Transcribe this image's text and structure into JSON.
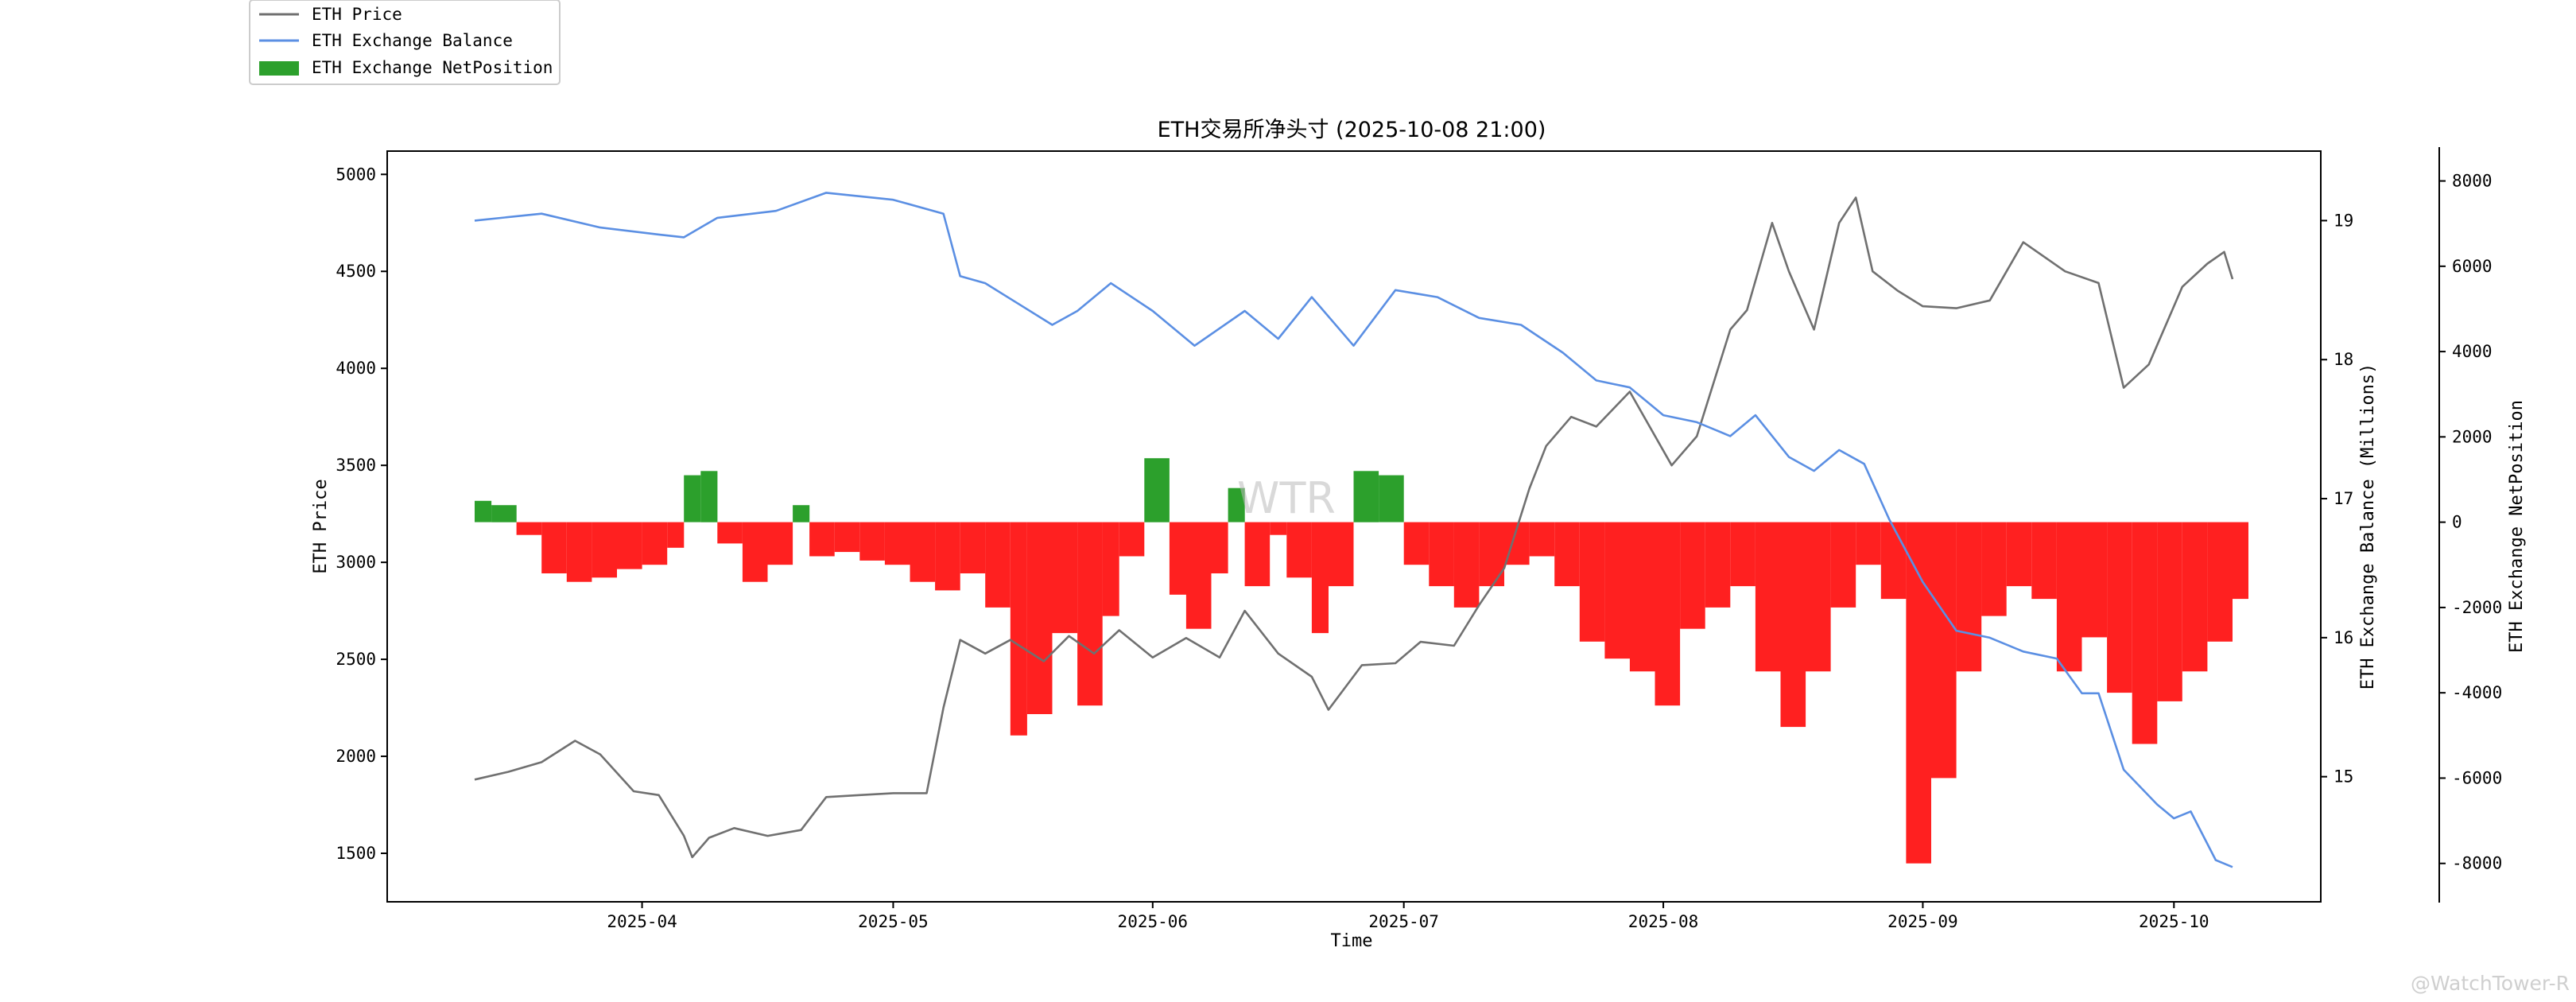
{
  "chart_data": {
    "type": "line",
    "title": "ETH交易所净头寸 (2025-10-08 21:00)",
    "xlabel": "Time",
    "x_ticks": [
      "2025-04",
      "2025-05",
      "2025-06",
      "2025-07",
      "2025-08",
      "2025-09",
      "2025-10"
    ],
    "x_range": [
      "2025-03-12",
      "2025-10-08"
    ],
    "watermark": "WTR",
    "corner_watermark": "@WatchTower-R",
    "legend": {
      "placement": "top-left, outside axes",
      "entries": [
        "ETH Price",
        "ETH Exchange Balance",
        "ETH Exchange NetPosition"
      ]
    },
    "colors": {
      "price": "#707070",
      "balance": "#5b8fe3",
      "net_positive": "#2ca02c",
      "net_negative": "#ff2020"
    },
    "axes": {
      "left": {
        "label": "ETH Price",
        "ylim": [
          1250,
          5120
        ],
        "ticks": [
          1500,
          2000,
          2500,
          3000,
          3500,
          4000,
          4500,
          5000
        ]
      },
      "right1": {
        "label": "ETH Exchange Balance (Millions)",
        "ylim": [
          14.1,
          19.5
        ],
        "ticks": [
          15,
          16,
          17,
          18,
          19
        ]
      },
      "right2": {
        "label": "ETH Exchange NetPosition",
        "ylim": [
          -8900,
          8700
        ],
        "ticks": [
          -8000,
          -6000,
          -4000,
          -2000,
          0,
          2000,
          4000,
          6000,
          8000
        ]
      }
    },
    "series": [
      {
        "name": "ETH Price",
        "type": "line",
        "axis": "left",
        "x": [
          "2025-03-12",
          "2025-03-16",
          "2025-03-20",
          "2025-03-24",
          "2025-03-27",
          "2025-03-31",
          "2025-04-03",
          "2025-04-06",
          "2025-04-07",
          "2025-04-09",
          "2025-04-12",
          "2025-04-16",
          "2025-04-20",
          "2025-04-23",
          "2025-04-27",
          "2025-05-01",
          "2025-05-05",
          "2025-05-07",
          "2025-05-09",
          "2025-05-12",
          "2025-05-15",
          "2025-05-19",
          "2025-05-22",
          "2025-05-25",
          "2025-05-28",
          "2025-06-01",
          "2025-06-05",
          "2025-06-09",
          "2025-06-12",
          "2025-06-16",
          "2025-06-20",
          "2025-06-22",
          "2025-06-26",
          "2025-06-30",
          "2025-07-03",
          "2025-07-07",
          "2025-07-10",
          "2025-07-13",
          "2025-07-16",
          "2025-07-18",
          "2025-07-21",
          "2025-07-24",
          "2025-07-28",
          "2025-08-02",
          "2025-08-05",
          "2025-08-09",
          "2025-08-11",
          "2025-08-14",
          "2025-08-16",
          "2025-08-19",
          "2025-08-22",
          "2025-08-24",
          "2025-08-26",
          "2025-08-29",
          "2025-09-01",
          "2025-09-05",
          "2025-09-09",
          "2025-09-13",
          "2025-09-18",
          "2025-09-22",
          "2025-09-25",
          "2025-09-28",
          "2025-10-02",
          "2025-10-05",
          "2025-10-07",
          "2025-10-08"
        ],
        "values": [
          1880,
          1920,
          1970,
          2080,
          2010,
          1820,
          1800,
          1590,
          1480,
          1580,
          1630,
          1590,
          1620,
          1790,
          1800,
          1810,
          1810,
          2250,
          2600,
          2530,
          2600,
          2490,
          2620,
          2530,
          2650,
          2510,
          2610,
          2510,
          2750,
          2530,
          2410,
          2240,
          2470,
          2480,
          2590,
          2570,
          2780,
          2970,
          3380,
          3600,
          3750,
          3700,
          3880,
          3500,
          3650,
          4200,
          4300,
          4750,
          4500,
          4200,
          4750,
          4880,
          4500,
          4400,
          4320,
          4310,
          4350,
          4650,
          4500,
          4440,
          3900,
          4020,
          4420,
          4540,
          4600,
          4460
        ]
      },
      {
        "name": "ETH Exchange Balance",
        "type": "line",
        "axis": "right1",
        "unit": "Millions",
        "x": [
          "2025-03-12",
          "2025-03-20",
          "2025-03-27",
          "2025-04-03",
          "2025-04-06",
          "2025-04-10",
          "2025-04-17",
          "2025-04-23",
          "2025-05-01",
          "2025-05-07",
          "2025-05-09",
          "2025-05-12",
          "2025-05-16",
          "2025-05-20",
          "2025-05-23",
          "2025-05-27",
          "2025-06-01",
          "2025-06-06",
          "2025-06-12",
          "2025-06-16",
          "2025-06-20",
          "2025-06-25",
          "2025-06-30",
          "2025-07-05",
          "2025-07-10",
          "2025-07-15",
          "2025-07-20",
          "2025-07-24",
          "2025-07-28",
          "2025-08-01",
          "2025-08-05",
          "2025-08-09",
          "2025-08-12",
          "2025-08-16",
          "2025-08-19",
          "2025-08-22",
          "2025-08-25",
          "2025-08-28",
          "2025-09-01",
          "2025-09-05",
          "2025-09-09",
          "2025-09-13",
          "2025-09-17",
          "2025-09-20",
          "2025-09-22",
          "2025-09-25",
          "2025-09-29",
          "2025-10-01",
          "2025-10-03",
          "2025-10-06",
          "2025-10-08"
        ],
        "values": [
          19.0,
          19.05,
          18.95,
          18.9,
          18.88,
          19.02,
          19.07,
          19.2,
          19.15,
          19.05,
          18.6,
          18.55,
          18.4,
          18.25,
          18.35,
          18.55,
          18.35,
          18.1,
          18.35,
          18.15,
          18.45,
          18.1,
          18.5,
          18.45,
          18.3,
          18.25,
          18.05,
          17.85,
          17.8,
          17.6,
          17.55,
          17.45,
          17.6,
          17.3,
          17.2,
          17.35,
          17.25,
          16.85,
          16.4,
          16.05,
          16.0,
          15.9,
          15.85,
          15.6,
          15.6,
          15.05,
          14.8,
          14.7,
          14.75,
          14.4,
          14.35
        ]
      },
      {
        "name": "ETH Exchange NetPosition",
        "type": "bar",
        "axis": "right2",
        "x": [
          "2025-03-12",
          "2025-03-14",
          "2025-03-17",
          "2025-03-20",
          "2025-03-23",
          "2025-03-26",
          "2025-03-29",
          "2025-04-01",
          "2025-04-04",
          "2025-04-06",
          "2025-04-08",
          "2025-04-10",
          "2025-04-13",
          "2025-04-16",
          "2025-04-19",
          "2025-04-21",
          "2025-04-24",
          "2025-04-27",
          "2025-04-30",
          "2025-05-03",
          "2025-05-06",
          "2025-05-09",
          "2025-05-12",
          "2025-05-15",
          "2025-05-17",
          "2025-05-20",
          "2025-05-23",
          "2025-05-26",
          "2025-05-28",
          "2025-05-31",
          "2025-06-03",
          "2025-06-05",
          "2025-06-08",
          "2025-06-10",
          "2025-06-12",
          "2025-06-15",
          "2025-06-17",
          "2025-06-20",
          "2025-06-22",
          "2025-06-25",
          "2025-06-28",
          "2025-07-01",
          "2025-07-04",
          "2025-07-07",
          "2025-07-10",
          "2025-07-13",
          "2025-07-16",
          "2025-07-19",
          "2025-07-22",
          "2025-07-25",
          "2025-07-28",
          "2025-07-31",
          "2025-08-03",
          "2025-08-06",
          "2025-08-09",
          "2025-08-12",
          "2025-08-15",
          "2025-08-18",
          "2025-08-21",
          "2025-08-24",
          "2025-08-27",
          "2025-08-30",
          "2025-09-02",
          "2025-09-05",
          "2025-09-08",
          "2025-09-11",
          "2025-09-14",
          "2025-09-17",
          "2025-09-20",
          "2025-09-23",
          "2025-09-26",
          "2025-09-29",
          "2025-10-02",
          "2025-10-05",
          "2025-10-08"
        ],
        "values": [
          500,
          400,
          -300,
          -1200,
          -1400,
          -1300,
          -1100,
          -1000,
          -600,
          1100,
          1200,
          -500,
          -1400,
          -1000,
          400,
          -800,
          -700,
          -900,
          -1000,
          -1400,
          -1600,
          -1200,
          -2000,
          -5000,
          -4500,
          -2600,
          -4300,
          -2200,
          -800,
          1500,
          -1700,
          -2500,
          -1200,
          800,
          -1500,
          -300,
          -1300,
          -2600,
          -1500,
          1200,
          1100,
          -1000,
          -1500,
          -2000,
          -1500,
          -1000,
          -800,
          -1500,
          -2800,
          -3200,
          -3500,
          -4300,
          -2500,
          -2000,
          -1500,
          -3500,
          -4800,
          -3500,
          -2000,
          -1000,
          -1800,
          -8000,
          -6000,
          -3500,
          -2200,
          -1500,
          -1800,
          -3500,
          -2700,
          -4000,
          -5200,
          -4200,
          -3500,
          -2800,
          -1800
        ]
      }
    ]
  }
}
